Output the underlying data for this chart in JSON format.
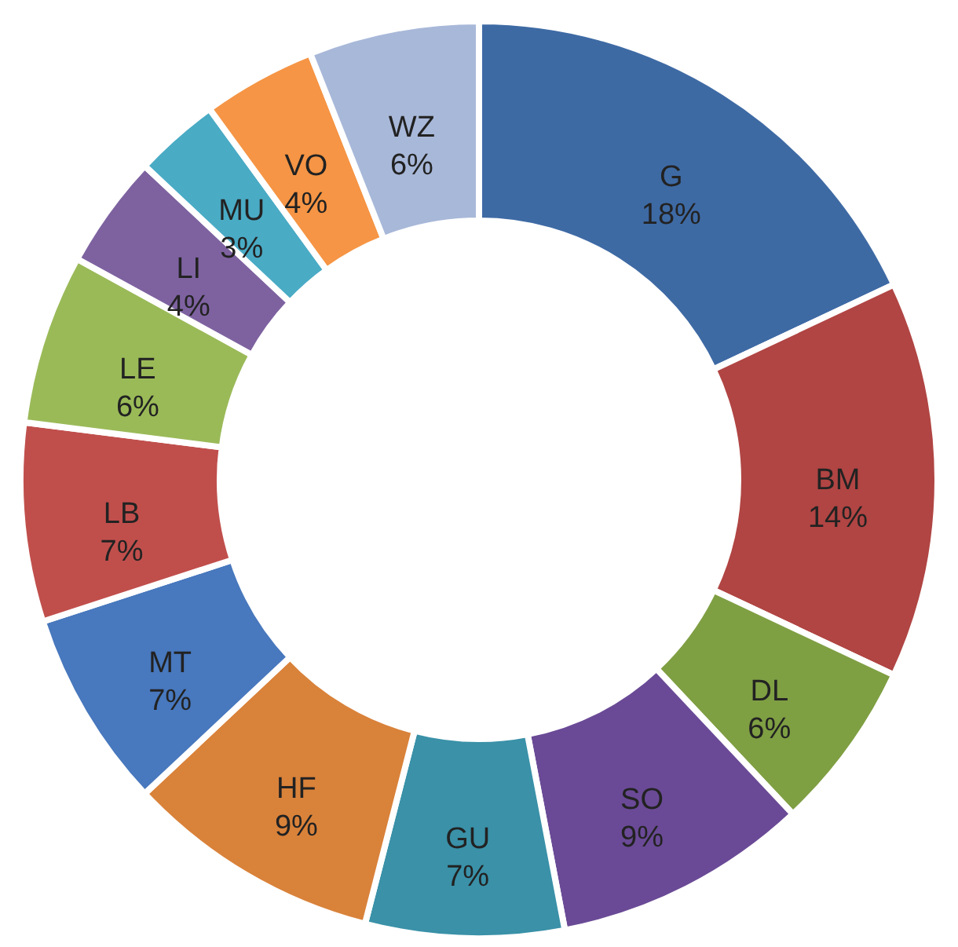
{
  "chart_data": {
    "type": "donut",
    "categories": [
      "G",
      "BM",
      "DL",
      "SO",
      "GU",
      "HF",
      "MT",
      "LB",
      "LE",
      "LI",
      "MU",
      "VO",
      "WZ"
    ],
    "values": [
      18,
      14,
      6,
      9,
      7,
      9,
      7,
      7,
      6,
      4,
      3,
      4,
      6
    ],
    "value_labels": [
      "18%",
      "14%",
      "6%",
      "9%",
      "7%",
      "9%",
      "7%",
      "7%",
      "6%",
      "4%",
      "3%",
      "4%",
      "6%"
    ],
    "colors": [
      "#3e6aa4",
      "#b04543",
      "#7f9f43",
      "#6a4a96",
      "#3a91a8",
      "#d9823a",
      "#4878bd",
      "#c04f4c",
      "#9aba58",
      "#7e62a0",
      "#4aabc5",
      "#f59545",
      "#a8b8d9"
    ],
    "legend": false
  }
}
